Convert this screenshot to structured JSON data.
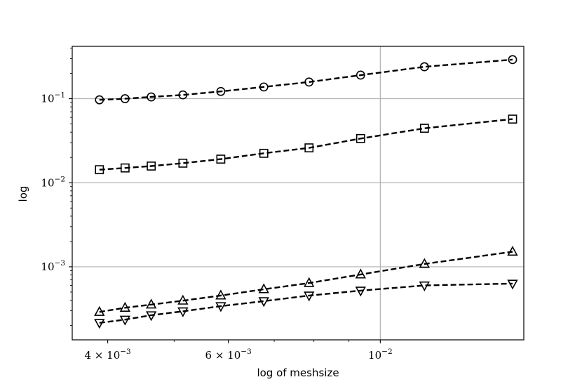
{
  "chart_data": {
    "type": "line",
    "title": "",
    "xlabel": "log of meshsize",
    "ylabel": "log",
    "x_scale": "log",
    "y_scale": "log",
    "xlim": [
      0.00355,
      0.0162
    ],
    "ylim": [
      0.000135,
      0.42
    ],
    "grid": "major",
    "legend": "none",
    "line_color": "#000000",
    "line_style": "dashed",
    "x": [
      0.00389,
      0.00424,
      0.00463,
      0.00515,
      0.00585,
      0.00676,
      0.00787,
      0.00936,
      0.0116,
      0.0156
    ],
    "series": [
      {
        "marker": "circle",
        "values": [
          0.097,
          0.1,
          0.105,
          0.111,
          0.122,
          0.138,
          0.158,
          0.191,
          0.24,
          0.292
        ]
      },
      {
        "marker": "square",
        "values": [
          0.0143,
          0.015,
          0.0158,
          0.0171,
          0.0191,
          0.0224,
          0.026,
          0.0336,
          0.0445,
          0.0572
        ]
      },
      {
        "marker": "triangle-up",
        "values": [
          0.00029,
          0.000325,
          0.000355,
          0.000395,
          0.000455,
          0.00054,
          0.00064,
          0.00081,
          0.00108,
          0.00151
        ]
      },
      {
        "marker": "triangle-down",
        "values": [
          0.000215,
          0.000235,
          0.000265,
          0.000295,
          0.00034,
          0.00039,
          0.000455,
          0.00052,
          0.0006,
          0.00063
        ]
      }
    ],
    "x_ticks": [
      {
        "value": 0.004,
        "base": "4 × 10",
        "exp": "−3"
      },
      {
        "value": 0.006,
        "base": "6 × 10",
        "exp": "−3"
      },
      {
        "value": 0.01,
        "base": "10",
        "exp": "−2"
      }
    ],
    "y_ticks": [
      {
        "value": 0.001,
        "base": "10",
        "exp": "−3"
      },
      {
        "value": 0.01,
        "base": "10",
        "exp": "−2"
      },
      {
        "value": 0.1,
        "base": "10",
        "exp": "−1"
      }
    ]
  }
}
